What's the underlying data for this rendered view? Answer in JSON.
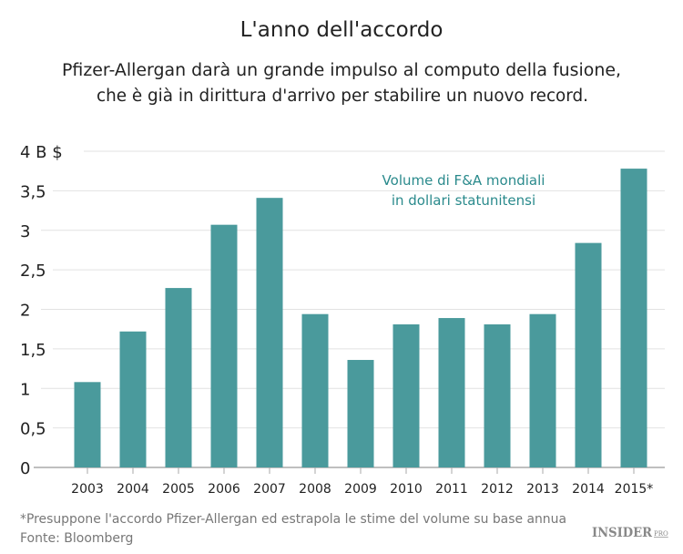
{
  "chart_data": {
    "type": "bar",
    "title": "L'anno dell'accordo",
    "subtitle": [
      "Pfizer-Allergan darà un grande impulso al computo della fusione,",
      "che è già in dirittura d'arrivo per stabilire un nuovo record."
    ],
    "annotation": [
      "Volume di F&A mondiali",
      "in dollari statunitensi"
    ],
    "categories": [
      "2003",
      "2004",
      "2005",
      "2006",
      "2007",
      "2008",
      "2009",
      "2010",
      "2011",
      "2012",
      "2013",
      "2014",
      "2015*"
    ],
    "values": [
      1.08,
      1.72,
      2.27,
      3.07,
      3.41,
      1.94,
      1.36,
      1.81,
      1.89,
      1.81,
      1.94,
      2.84,
      3.78
    ],
    "ylim": [
      0,
      4
    ],
    "yticks": [
      0,
      0.5,
      1,
      1.5,
      2,
      2.5,
      3,
      3.5,
      4
    ],
    "ytick_labels": [
      "0",
      "0,5",
      "1",
      "1,5",
      "2",
      "2,5",
      "3",
      "3,5",
      "4 B $"
    ],
    "grid": true,
    "bar_color": "#4a9a9c",
    "annotation_color": "#2a8a8c"
  },
  "footnote": "*Presuppone l'accordo Pfizer-Allergan ed estrapola le stime del volume su base annua",
  "source": "Fonte: Bloomberg",
  "logo": {
    "main": "INSIDER",
    "sup": "PRO"
  }
}
